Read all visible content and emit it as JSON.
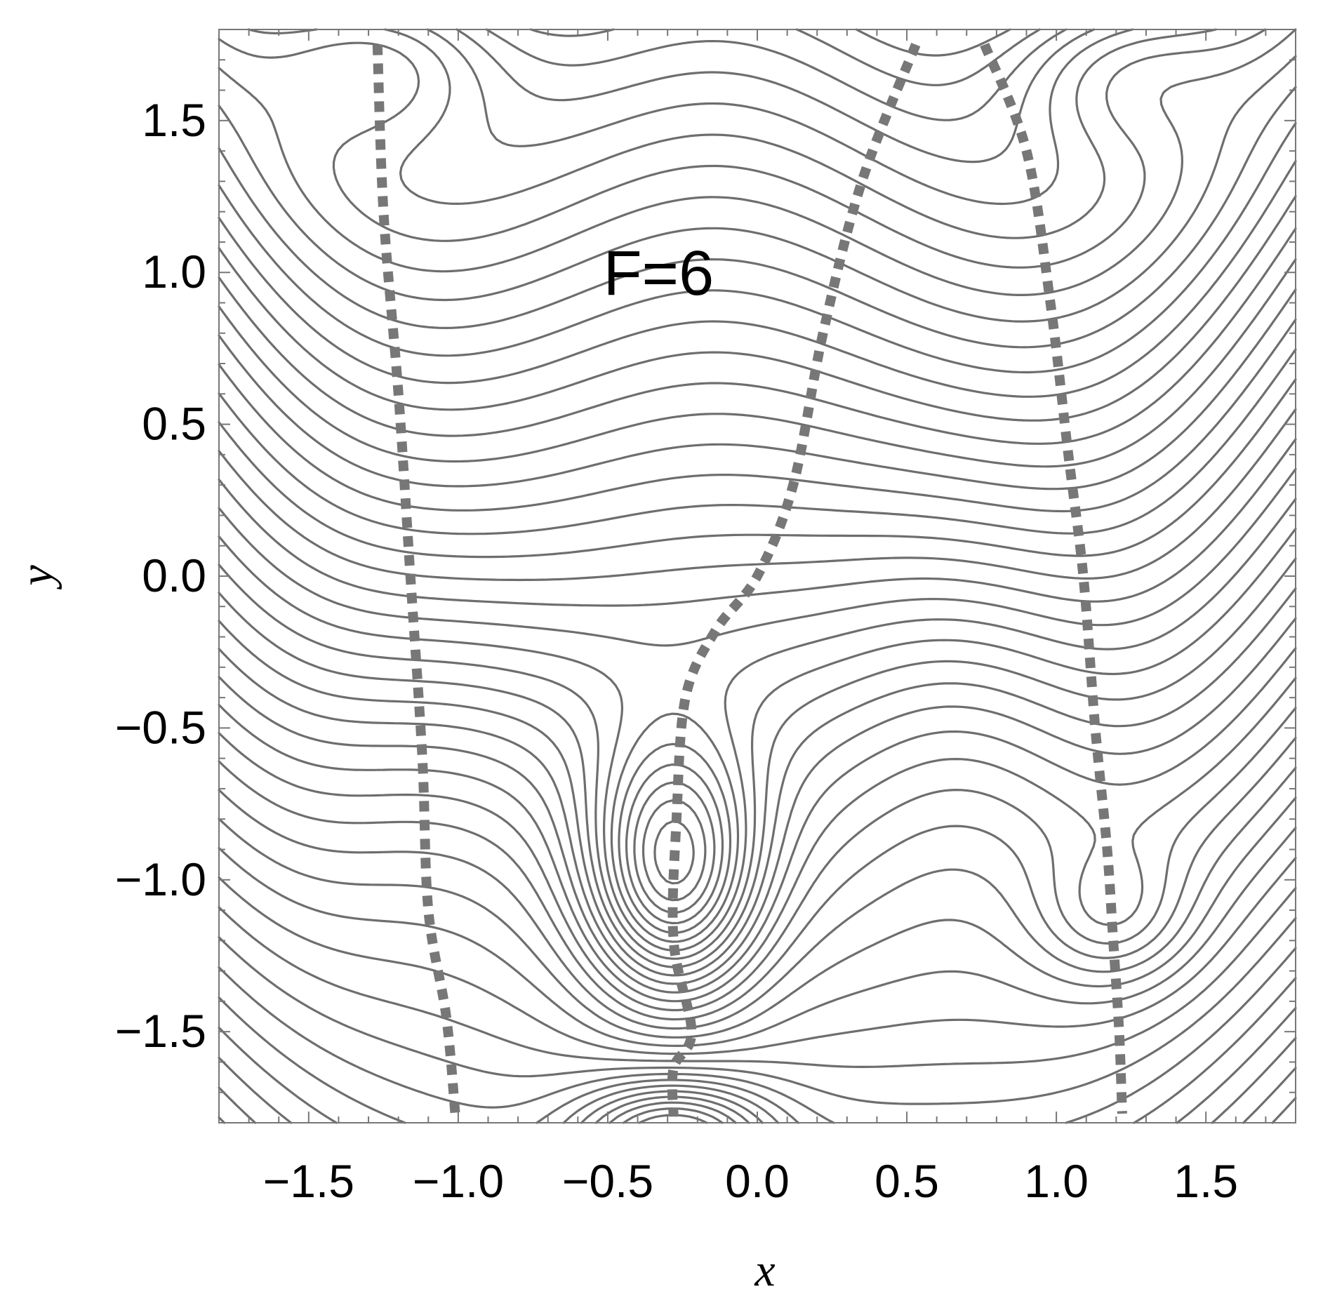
{
  "chart_data": {
    "type": "contour",
    "title": "",
    "xlabel": "x",
    "ylabel": "y",
    "xlim": [
      -1.8,
      1.8
    ],
    "ylim": [
      -1.8,
      1.8
    ],
    "xticks": [
      "−1.5",
      "−1.0",
      "−0.5",
      "0.0",
      "0.5",
      "1.0",
      "1.5"
    ],
    "xtick_values": [
      -1.5,
      -1.0,
      -0.5,
      0.0,
      0.5,
      1.0,
      1.5
    ],
    "yticks": [
      "1.5",
      "1.0",
      "0.5",
      "0.0",
      "−0.5",
      "−1.0",
      "−1.5"
    ],
    "ytick_values": [
      1.5,
      1.0,
      0.5,
      0.0,
      -0.5,
      -1.0,
      -1.5
    ],
    "annotation": {
      "text": "F=6",
      "x": -0.33,
      "y": 1.0
    },
    "extrema": [
      {
        "x": -1.28,
        "y": 1.65
      },
      {
        "x": 1.2,
        "y": 1.6
      },
      {
        "x": -0.28,
        "y": -0.98
      },
      {
        "x": 1.19,
        "y": -1.12
      },
      {
        "x": -0.28,
        "y": -1.75
      }
    ],
    "grid": false,
    "colors": {
      "contour": "#6e6e6e",
      "ridge": "#777777"
    }
  }
}
